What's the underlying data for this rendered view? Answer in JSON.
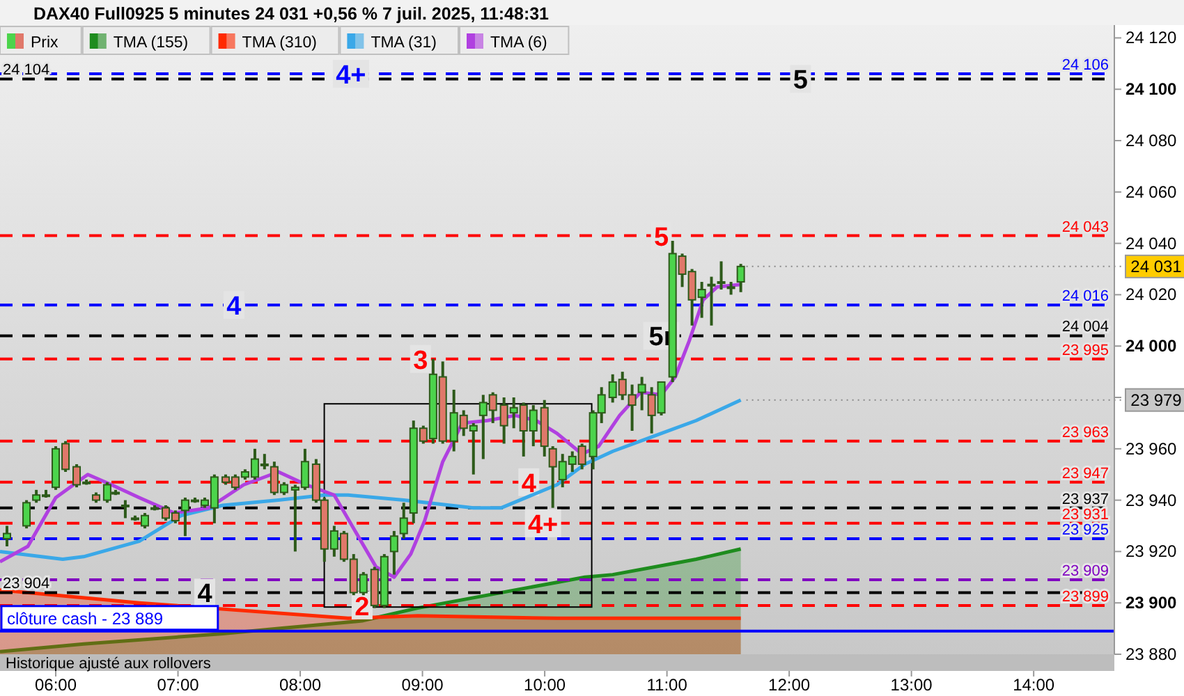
{
  "chart_data": {
    "type": "candlestick",
    "title": "DAX40 Full0925 5 minutes 24 031 +0,56 % 7 juil. 2025, 11:48:31",
    "legend": "top left",
    "xlim": [
      5.544,
      14.66
    ],
    "ylim": [
      23880,
      24125
    ],
    "xticks": [
      {
        "value": 6,
        "label": "06:00"
      },
      {
        "value": 7,
        "label": "07:00"
      },
      {
        "value": 8,
        "label": "08:00"
      },
      {
        "value": 9,
        "label": "09:00"
      },
      {
        "value": 10,
        "label": "10:00"
      },
      {
        "value": 11,
        "label": "11:00"
      },
      {
        "value": 12,
        "label": "12:00"
      },
      {
        "value": 13,
        "label": "13:00"
      },
      {
        "value": 14,
        "label": "14:00"
      }
    ],
    "yticks": [
      {
        "value": 23880,
        "label": "23 880"
      },
      {
        "value": 23900,
        "label": "23 900"
      },
      {
        "value": 23920,
        "label": "23 920"
      },
      {
        "value": 23940,
        "label": "23 940"
      },
      {
        "value": 23960,
        "label": "23 960"
      },
      {
        "value": 23980,
        "label": null
      },
      {
        "value": 24000,
        "label": "24 000"
      },
      {
        "value": 24020,
        "label": "24 020"
      },
      {
        "value": 24040,
        "label": "24 040"
      },
      {
        "value": 24060,
        "label": "24 060"
      },
      {
        "value": 24080,
        "label": "24 080"
      },
      {
        "value": 24100,
        "label": "24 100"
      },
      {
        "value": 24120,
        "label": "24 120"
      }
    ],
    "series": [
      {
        "name": "Prix",
        "colors": [
          "#4cd44c",
          "#4cd44c",
          "#4cd44c",
          "#4cd44c",
          "#4cd44c",
          "#e0786a",
          "#e0786a",
          "#4cd44c",
          "#e0786a",
          "#4cd44c",
          "#4cd44c",
          "#4cd44c",
          "#4cd44c",
          "#4cd44c",
          "#4cd44c",
          "#e0786a",
          "#e0786a",
          "#4cd44c",
          "#4cd44c",
          "#4cd44c",
          "#4cd44c",
          "#e0786a",
          "#e0786a",
          "#4cd44c",
          "#4cd44c",
          "#4cd44c",
          "#e0786a",
          "#4cd44c",
          "#4cd44c",
          "#4cd44c",
          "#e0786a",
          "#e0786a",
          "#4cd44c",
          "#e0786a",
          "#e0786a",
          "#4cd44c",
          "#e0786a",
          "#4cd44c",
          "#4cd44c",
          "#4cd44c",
          "#4cd44c",
          "#e0786a",
          "#4cd44c",
          "#e0786a",
          "#4cd44c",
          "#e0786a",
          "#4cd44c",
          "#4cd44c",
          "#e0786a",
          "#e0786a",
          "#4cd44c",
          "#e0786a",
          "#4cd44c",
          "#e0786a",
          "#e0786a",
          "#4cd44c",
          "#4cd44c",
          "#e0786a",
          "#4cd44c",
          "#4cd44c",
          "#4cd44c",
          "#e0786a",
          "#e0786a",
          "#4cd44c",
          "#e0786a",
          "#4cd44c",
          "#4cd44c",
          "#e0786a",
          "#e0786a",
          "#4cd44c",
          "#4cd44c",
          "#4cd44c",
          "#4cd44c",
          "#4cd44c"
        ],
        "x": [
          5.601,
          5.761,
          5.841,
          5.92,
          6.0,
          6.08,
          6.171,
          6.251,
          6.33,
          6.421,
          6.49,
          6.569,
          6.649,
          6.729,
          6.809,
          6.9,
          6.979,
          7.059,
          7.139,
          7.219,
          7.298,
          7.39,
          7.469,
          7.549,
          7.629,
          7.708,
          7.788,
          7.868,
          7.959,
          8.039,
          8.13,
          8.198,
          8.278,
          8.358,
          8.437,
          8.517,
          8.608,
          8.688,
          8.768,
          8.847,
          8.927,
          9.007,
          9.087,
          9.166,
          9.257,
          9.337,
          9.417,
          9.497,
          9.576,
          9.667,
          9.747,
          9.827,
          9.907,
          9.998,
          10.066,
          10.146,
          10.226,
          10.305,
          10.396,
          10.465,
          10.556,
          10.636,
          10.715,
          10.795,
          10.875,
          10.954,
          11.046,
          11.125,
          11.205,
          11.285,
          11.364,
          11.444,
          11.524,
          11.604
        ],
        "ohlc": [
          [
            23925,
            23930,
            23922,
            23927
          ],
          [
            23930,
            23940,
            23929,
            23939
          ],
          [
            23940,
            23944,
            23939,
            23942
          ],
          [
            23942,
            23944,
            23941,
            23942
          ],
          [
            23945,
            23961,
            23944,
            23960
          ],
          [
            23962,
            23963,
            23951,
            23952
          ],
          [
            23953,
            23954,
            23945,
            23946
          ],
          [
            23947,
            23948,
            23946,
            23947
          ],
          [
            23942,
            23943,
            23939,
            23940
          ],
          [
            23940,
            23947,
            23939,
            23946
          ],
          [
            23943,
            23944,
            23942,
            23943
          ],
          [
            23938,
            23940,
            23933,
            23938
          ],
          [
            23933,
            23934,
            23932,
            23933
          ],
          [
            23930,
            23935,
            23929,
            23934
          ],
          [
            23937,
            23938,
            23936,
            23937
          ],
          [
            23937,
            23938,
            23932,
            23933
          ],
          [
            23935,
            23936,
            23931,
            23932
          ],
          [
            23936,
            23941,
            23926,
            23940
          ],
          [
            23940,
            23941,
            23939,
            23940
          ],
          [
            23938,
            23941,
            23937,
            23940
          ],
          [
            23937,
            23950,
            23931,
            23949
          ],
          [
            23949,
            23950,
            23946,
            23947
          ],
          [
            23949,
            23950,
            23944,
            23945
          ],
          [
            23949,
            23952,
            23948,
            23951
          ],
          [
            23949,
            23960,
            23948,
            23956
          ],
          [
            23954,
            23958,
            23952,
            23954
          ],
          [
            23953,
            23955,
            23942,
            23943
          ],
          [
            23943,
            23947,
            23942,
            23946
          ],
          [
            23944,
            23946,
            23920,
            23945
          ],
          [
            23945,
            23960,
            23944,
            23955
          ],
          [
            23954,
            23956,
            23939,
            23940
          ],
          [
            23940,
            23941,
            23916,
            23921
          ],
          [
            23921,
            23930,
            23918,
            23928
          ],
          [
            23927,
            23928,
            23916,
            23917
          ],
          [
            23917,
            23919,
            23903,
            23904
          ],
          [
            23904,
            23912,
            23903,
            23911
          ],
          [
            23913,
            23914,
            23898,
            23899
          ],
          [
            23899,
            23919,
            23898,
            23918
          ],
          [
            23920,
            23928,
            23911,
            23926
          ],
          [
            23927,
            23939,
            23925,
            23933
          ],
          [
            23935,
            23971,
            23931,
            23968
          ],
          [
            23968,
            23969,
            23962,
            23963
          ],
          [
            23964,
            23995,
            23962,
            23989
          ],
          [
            23988,
            23994,
            23962,
            23963
          ],
          [
            23963,
            23983,
            23959,
            23974
          ],
          [
            23973,
            23975,
            23965,
            23968
          ],
          [
            23967,
            23970,
            23950,
            23969
          ],
          [
            23973,
            23981,
            23956,
            23978
          ],
          [
            23981,
            23982,
            23970,
            23975
          ],
          [
            23977,
            23980,
            23962,
            23969
          ],
          [
            23974,
            23980,
            23968,
            23976
          ],
          [
            23977,
            23978,
            23957,
            23967
          ],
          [
            23967,
            23977,
            23961,
            23975
          ],
          [
            23976,
            23979,
            23957,
            23961
          ],
          [
            23960,
            23961,
            23937,
            23953
          ],
          [
            23948,
            23958,
            23945,
            23955
          ],
          [
            23954,
            23959,
            23951,
            23957
          ],
          [
            23961,
            23962,
            23952,
            23954
          ],
          [
            23957,
            23975,
            23952,
            23974
          ],
          [
            23974,
            23984,
            23970,
            23981
          ],
          [
            23980,
            23989,
            23978,
            23986
          ],
          [
            23987,
            23990,
            23979,
            23981
          ],
          [
            23981,
            23985,
            23967,
            23977
          ],
          [
            23982,
            23988,
            23975,
            23985
          ],
          [
            23981,
            23984,
            23966,
            23973
          ],
          [
            23974,
            23986,
            23973,
            23986
          ],
          [
            23988,
            24041,
            23986,
            24036
          ],
          [
            24035,
            24036,
            24023,
            24028
          ],
          [
            24029,
            24030,
            24008,
            24018
          ],
          [
            24019,
            24025,
            24011,
            24022
          ],
          [
            24024,
            24027,
            24008,
            24024
          ],
          [
            24025,
            24033,
            24022,
            24025
          ],
          [
            24023,
            24025,
            24020,
            24023
          ],
          [
            24025,
            24032,
            24021,
            24031
          ]
        ]
      },
      {
        "name": "TMA (155)",
        "type": "area",
        "color": "#1e8c1e",
        "x": [
          5.544,
          6.228,
          7.367,
          7.822,
          8.506,
          8.961,
          10.1,
          10.328,
          10.556,
          11.125,
          11.239,
          11.604
        ],
        "values": [
          23881,
          23884,
          23888,
          23890,
          23893,
          23898,
          23908,
          23910,
          23911,
          23916,
          23917,
          23921
        ]
      },
      {
        "name": "TMA (310)",
        "type": "area",
        "color": "#ff2a00",
        "x": [
          5.544,
          6.683,
          8.392,
          8.961,
          10.1,
          11.604
        ],
        "values": [
          23905,
          23900,
          23894,
          23895,
          23894,
          23894
        ]
      },
      {
        "name": "TMA (31)",
        "type": "line",
        "color": "#3aa8e8",
        "x": [
          5.544,
          6.057,
          6.228,
          6.683,
          7.025,
          7.367,
          7.822,
          8.198,
          8.392,
          8.847,
          9.417,
          9.645,
          10.1,
          10.328,
          10.556,
          10.897,
          11.239,
          11.604
        ],
        "values": [
          23920,
          23917,
          23918,
          23924,
          23934,
          23938,
          23940,
          23942,
          23942,
          23940,
          23937,
          23937,
          23946,
          23954,
          23959,
          23965,
          23971,
          23979
        ]
      },
      {
        "name": "TMA (6)",
        "type": "line",
        "color": "#b040e0",
        "x": [
          5.544,
          5.772,
          6.0,
          6.262,
          6.456,
          6.683,
          6.968,
          7.253,
          7.538,
          7.822,
          8.05,
          8.278,
          8.449,
          8.62,
          8.768,
          8.904,
          9.018,
          9.166,
          9.326,
          9.531,
          9.759,
          9.929,
          10.1,
          10.305,
          10.442,
          10.613,
          10.784,
          10.954,
          11.068,
          11.182,
          11.296,
          11.41,
          11.604
        ],
        "values": [
          23916,
          23922,
          23941,
          23950,
          23946,
          23941,
          23935,
          23937,
          23946,
          23951,
          23946,
          23942,
          23928,
          23914,
          23910,
          23919,
          23932,
          23955,
          23970,
          23971,
          23973,
          23971,
          23966,
          23958,
          23961,
          23973,
          23982,
          23981,
          23988,
          24002,
          24018,
          24023,
          24024
        ]
      }
    ],
    "ref_lines": [
      {
        "axis": "y",
        "value": 24106,
        "label": "24 106",
        "color": "#0000ff",
        "line_style": "dashed"
      },
      {
        "axis": "y",
        "value": 24104,
        "label": "24 104",
        "color": "#000000",
        "line_style": "dashed"
      },
      {
        "axis": "y",
        "value": 24043,
        "label": "24 043",
        "color": "#ff0000",
        "line_style": "dashed"
      },
      {
        "axis": "y",
        "value": 24016,
        "label": "24 016",
        "color": "#0000ff",
        "line_style": "dashed"
      },
      {
        "axis": "y",
        "value": 24004,
        "label": "24 004",
        "color": "#000000",
        "line_style": "dashed"
      },
      {
        "axis": "y",
        "value": 23995,
        "label": "23 995",
        "color": "#ff0000",
        "line_style": "dashed"
      },
      {
        "axis": "y",
        "value": 23963,
        "label": "23 963",
        "color": "#ff0000",
        "line_style": "dashed"
      },
      {
        "axis": "y",
        "value": 23947,
        "label": "23 947",
        "color": "#ff0000",
        "line_style": "dashed"
      },
      {
        "axis": "y",
        "value": 23937,
        "label": "23 937",
        "color": "#000000",
        "line_style": "dashed"
      },
      {
        "axis": "y",
        "value": 23931,
        "label": "23 931",
        "color": "#ff0000",
        "line_style": "dashed"
      },
      {
        "axis": "y",
        "value": 23925,
        "label": "23 925",
        "color": "#0000ff",
        "line_style": "dashed"
      },
      {
        "axis": "y",
        "value": 23909,
        "label": "23 909",
        "color": "#8000c0",
        "line_style": "dashed"
      },
      {
        "axis": "y",
        "value": 23904,
        "label": "23 904",
        "color": "#000000",
        "line_style": "dashed"
      },
      {
        "axis": "y",
        "value": 23899,
        "label": "23 899",
        "color": "#ff0000",
        "line_style": "dashed"
      },
      {
        "axis": "y",
        "value": 23889,
        "label": "clôture cash -  23 889",
        "color": "#0000ff",
        "line_style": "solid"
      }
    ],
    "annotations": [
      {
        "text": "4+",
        "x": 8.415,
        "y": 24106
      },
      {
        "text": "5",
        "x": 12.093,
        "y": 24104
      },
      {
        "text": "5",
        "x": 10.954,
        "y": 24043
      },
      {
        "text": "4",
        "x": 7.458,
        "y": 24016
      },
      {
        "text": "5r",
        "x": 10.954,
        "y": 24004
      },
      {
        "text": "3",
        "x": 8.984,
        "y": 23995
      },
      {
        "text": "4",
        "x": 9.87,
        "y": 23947
      },
      {
        "text": "4+",
        "x": 9.986,
        "y": 23931
      },
      {
        "text": "4",
        "x": 7.219,
        "y": 23904
      },
      {
        "text": "2",
        "x": 8.506,
        "y": 23899
      },
      {
        "text": "24 031",
        "x": 11.604,
        "y": 24031
      },
      {
        "text": "23 979",
        "x": 11.604,
        "y": 23979
      },
      "Historique ajusté aux rollovers"
    ]
  }
}
